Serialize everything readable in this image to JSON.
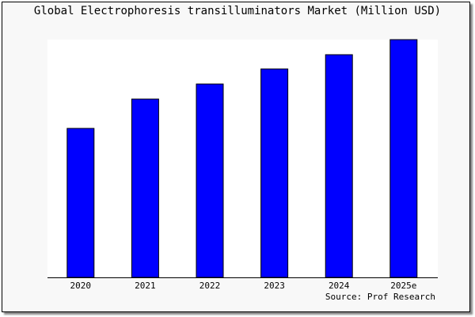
{
  "chart_data": {
    "type": "bar",
    "title": "Global Electrophoresis transilluminators Market (Million USD)",
    "categories": [
      "2020",
      "2021",
      "2022",
      "2023",
      "2024",
      "2025e"
    ],
    "values": [
      188,
      225,
      244,
      263,
      281,
      300
    ],
    "xlabel": "",
    "ylabel": "",
    "ylim": [
      0,
      300
    ],
    "grid": false,
    "bar_color": "#0000ff",
    "source": "Source: Prof Research"
  }
}
